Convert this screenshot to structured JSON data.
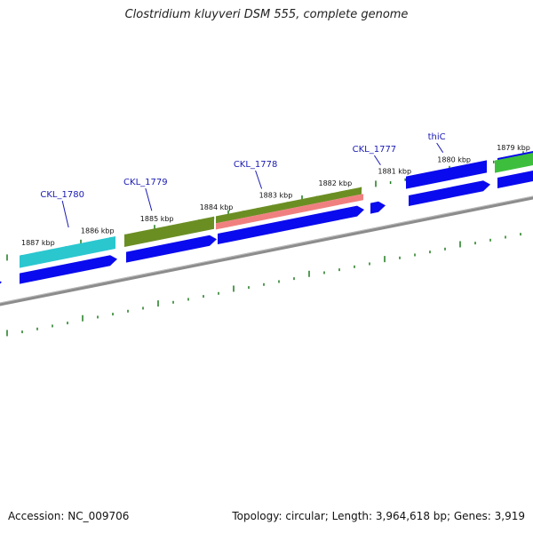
{
  "title": "Clostridium kluyveri DSM 555, complete genome",
  "footer": {
    "accession": "Accession: NC_009706",
    "summary": "Topology: circular; Length: 3,964,618 bp; Genes: 3,919"
  },
  "kbp_labels": [
    {
      "text": "1887 kbp",
      "pos": 1887
    },
    {
      "text": "1886 kbp",
      "pos": 1886
    },
    {
      "text": "1885 kbp",
      "pos": 1885
    },
    {
      "text": "1884 kbp",
      "pos": 1884
    },
    {
      "text": "1883 kbp",
      "pos": 1883
    },
    {
      "text": "1882 kbp",
      "pos": 1882
    },
    {
      "text": "1881 kbp",
      "pos": 1881
    },
    {
      "text": "1880 kbp",
      "pos": 1880
    },
    {
      "text": "1879 kbp",
      "pos": 1879
    }
  ],
  "gene_labels": [
    {
      "text": "CKL_1780",
      "pos": 1886.25
    },
    {
      "text": "CKL_1779",
      "pos": 1884.85
    },
    {
      "text": "CKL_1778",
      "pos": 1883.0
    },
    {
      "text": "CKL_1777",
      "pos": 1881.0
    },
    {
      "text": "thiC",
      "pos": 1879.95
    }
  ],
  "colors": {
    "cds": "#0a0aee",
    "teal_feature": "#2ac7cf",
    "olive_feature": "#6b8e23",
    "pink_feature": "#f08080",
    "green_feature": "#3dbf3d",
    "backbone": "#8c8c8c",
    "ticks": "#1e7a1e",
    "label_line": "#1a1ab4"
  }
}
